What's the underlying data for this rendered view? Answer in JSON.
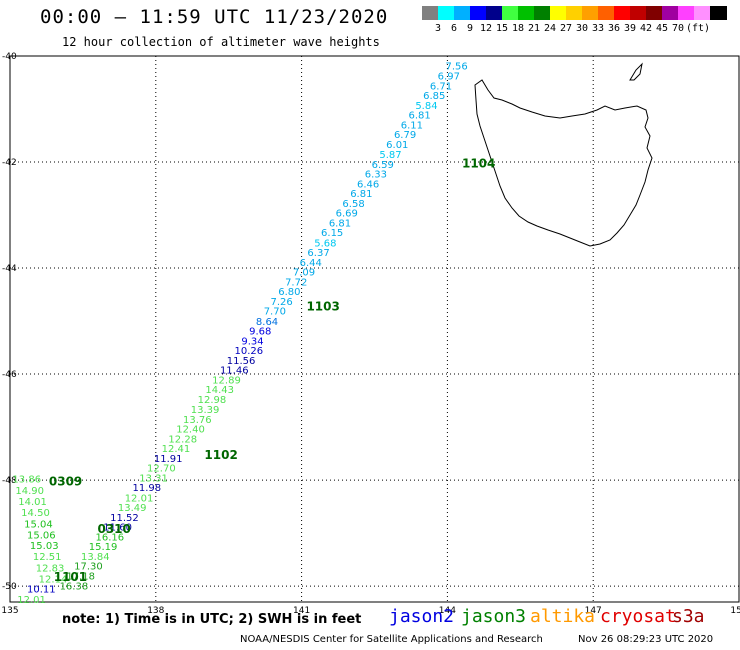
{
  "header": {
    "title": "00:00 – 11:59 UTC 11/23/2020",
    "subtitle": "12 hour collection of altimeter wave heights"
  },
  "legend": {
    "unit": "(ft)",
    "colors": [
      "#808080",
      "#00ffff",
      "#00b0ff",
      "#0000ff",
      "#00008b",
      "#40ff40",
      "#00c000",
      "#008000",
      "#ffff00",
      "#ffd000",
      "#ffa000",
      "#ff6000",
      "#ff0000",
      "#c00000",
      "#800000",
      "#a000a0",
      "#ff40ff",
      "#ff90ff",
      "#000000"
    ],
    "labels": [
      "3",
      "6",
      "9",
      "12",
      "15",
      "18",
      "21",
      "24",
      "27",
      "30",
      "33",
      "36",
      "39",
      "42",
      "45",
      "70"
    ]
  },
  "axes": {
    "lon_ticks": [
      "135",
      "138",
      "141",
      "144",
      "147",
      "150"
    ],
    "lat_ticks": [
      "-40",
      "-42",
      "-44",
      "-46",
      "-48",
      "-50"
    ]
  },
  "pass_labels": [
    {
      "text": "1104",
      "lon": 144.3,
      "lat": -42.1
    },
    {
      "text": "1103",
      "lon": 141.1,
      "lat": -44.8
    },
    {
      "text": "1102",
      "lon": 139.0,
      "lat": -47.6
    },
    {
      "text": "0309",
      "lon": 135.8,
      "lat": -48.1
    },
    {
      "text": "0310",
      "lon": 136.8,
      "lat": -49.0
    },
    {
      "text": "1101",
      "lon": 135.9,
      "lat": -49.9
    }
  ],
  "wave_values": [
    {
      "text": "7.56",
      "lon": 143.96,
      "lat": -40.25,
      "color": "#00a8e8"
    },
    {
      "text": "6.97",
      "lon": 143.8,
      "lat": -40.44,
      "color": "#00a8e8"
    },
    {
      "text": "6.71",
      "lon": 143.64,
      "lat": -40.63,
      "color": "#00a8e8"
    },
    {
      "text": "6.85",
      "lon": 143.5,
      "lat": -40.81,
      "color": "#00a8e8"
    },
    {
      "text": "5.84",
      "lon": 143.34,
      "lat": -41.0,
      "color": "#00c8f0"
    },
    {
      "text": "6.81",
      "lon": 143.2,
      "lat": -41.18,
      "color": "#00a8e8"
    },
    {
      "text": "6.11",
      "lon": 143.04,
      "lat": -41.37,
      "color": "#00a8e8"
    },
    {
      "text": "6.79",
      "lon": 142.9,
      "lat": -41.55,
      "color": "#00a8e8"
    },
    {
      "text": "6.01",
      "lon": 142.74,
      "lat": -41.74,
      "color": "#00a8e8"
    },
    {
      "text": "5.87",
      "lon": 142.6,
      "lat": -41.92,
      "color": "#00c8f0"
    },
    {
      "text": "6.59",
      "lon": 142.44,
      "lat": -42.11,
      "color": "#00a8e8"
    },
    {
      "text": "6.33",
      "lon": 142.3,
      "lat": -42.29,
      "color": "#00a8e8"
    },
    {
      "text": "6.46",
      "lon": 142.14,
      "lat": -42.48,
      "color": "#00a8e8"
    },
    {
      "text": "6.81",
      "lon": 142.0,
      "lat": -42.66,
      "color": "#00a8e8"
    },
    {
      "text": "6.58",
      "lon": 141.84,
      "lat": -42.85,
      "color": "#00a8e8"
    },
    {
      "text": "6.69",
      "lon": 141.7,
      "lat": -43.03,
      "color": "#00a8e8"
    },
    {
      "text": "6.81",
      "lon": 141.56,
      "lat": -43.22,
      "color": "#00a8e8"
    },
    {
      "text": "6.15",
      "lon": 141.4,
      "lat": -43.4,
      "color": "#00a8e8"
    },
    {
      "text": "5.68",
      "lon": 141.26,
      "lat": -43.59,
      "color": "#00c8f0"
    },
    {
      "text": "6.37",
      "lon": 141.12,
      "lat": -43.77,
      "color": "#00a8e8"
    },
    {
      "text": "6.44",
      "lon": 140.96,
      "lat": -43.96,
      "color": "#00a8e8"
    },
    {
      "text": "7.09",
      "lon": 140.82,
      "lat": -44.14,
      "color": "#00a8e8"
    },
    {
      "text": "7.72",
      "lon": 140.66,
      "lat": -44.33,
      "color": "#00a8e8"
    },
    {
      "text": "6.80",
      "lon": 140.52,
      "lat": -44.51,
      "color": "#00a8e8"
    },
    {
      "text": "7.26",
      "lon": 140.36,
      "lat": -44.7,
      "color": "#00a8e8"
    },
    {
      "text": "7.70",
      "lon": 140.22,
      "lat": -44.88,
      "color": "#00a8e8"
    },
    {
      "text": "8.64",
      "lon": 140.06,
      "lat": -45.07,
      "color": "#0070e0"
    },
    {
      "text": "9.68",
      "lon": 139.92,
      "lat": -45.25,
      "color": "#0000e0"
    },
    {
      "text": "9.34",
      "lon": 139.76,
      "lat": -45.44,
      "color": "#0000e0"
    },
    {
      "text": "10.26",
      "lon": 139.62,
      "lat": -45.62,
      "color": "#0000c0"
    },
    {
      "text": "11.56",
      "lon": 139.46,
      "lat": -45.81,
      "color": "#0000a0"
    },
    {
      "text": "11.46",
      "lon": 139.32,
      "lat": -45.99,
      "color": "#0000a0"
    },
    {
      "text": "12.89",
      "lon": 139.16,
      "lat": -46.18,
      "color": "#50e050"
    },
    {
      "text": "14.43",
      "lon": 139.02,
      "lat": -46.36,
      "color": "#50e050"
    },
    {
      "text": "12.98",
      "lon": 138.86,
      "lat": -46.55,
      "color": "#50e050"
    },
    {
      "text": "13.39",
      "lon": 138.72,
      "lat": -46.73,
      "color": "#50e050"
    },
    {
      "text": "13.76",
      "lon": 138.56,
      "lat": -46.92,
      "color": "#50e050"
    },
    {
      "text": "12.40",
      "lon": 138.42,
      "lat": -47.1,
      "color": "#50e050"
    },
    {
      "text": "12.28",
      "lon": 138.26,
      "lat": -47.29,
      "color": "#50e050"
    },
    {
      "text": "12.41",
      "lon": 138.12,
      "lat": -47.47,
      "color": "#50e050"
    },
    {
      "text": "11.91",
      "lon": 137.96,
      "lat": -47.66,
      "color": "#0000a0"
    },
    {
      "text": "12.70",
      "lon": 137.82,
      "lat": -47.84,
      "color": "#50e050"
    },
    {
      "text": "13.31",
      "lon": 137.66,
      "lat": -48.03,
      "color": "#50e050"
    },
    {
      "text": "11.98",
      "lon": 137.52,
      "lat": -48.21,
      "color": "#0000a0"
    },
    {
      "text": "12.01",
      "lon": 137.36,
      "lat": -48.4,
      "color": "#50e050"
    },
    {
      "text": "13.49",
      "lon": 137.22,
      "lat": -48.58,
      "color": "#50e050"
    },
    {
      "text": "11.52",
      "lon": 137.06,
      "lat": -48.77,
      "color": "#0000a0"
    },
    {
      "text": "11.60",
      "lon": 136.92,
      "lat": -48.95,
      "color": "#0000a0"
    },
    {
      "text": "16.16",
      "lon": 136.76,
      "lat": -49.14,
      "color": "#20c020"
    },
    {
      "text": "15.19",
      "lon": 136.62,
      "lat": -49.32,
      "color": "#20c020"
    },
    {
      "text": "13.84",
      "lon": 136.46,
      "lat": -49.51,
      "color": "#50e050"
    },
    {
      "text": "17.30",
      "lon": 136.32,
      "lat": -49.69,
      "color": "#20a020"
    },
    {
      "text": "17.18",
      "lon": 136.16,
      "lat": -49.88,
      "color": "#20a020"
    },
    {
      "text": "16.38",
      "lon": 136.02,
      "lat": -50.06,
      "color": "#20a020"
    },
    {
      "text": "13.86",
      "lon": 135.05,
      "lat": -48.05,
      "color": "#50e050"
    },
    {
      "text": "14.90",
      "lon": 135.11,
      "lat": -48.26,
      "color": "#50e050"
    },
    {
      "text": "14.01",
      "lon": 135.17,
      "lat": -48.47,
      "color": "#50e050"
    },
    {
      "text": "14.50",
      "lon": 135.23,
      "lat": -48.68,
      "color": "#50e050"
    },
    {
      "text": "15.04",
      "lon": 135.29,
      "lat": -48.89,
      "color": "#20c020"
    },
    {
      "text": "15.06",
      "lon": 135.35,
      "lat": -49.1,
      "color": "#20c020"
    },
    {
      "text": "15.03",
      "lon": 135.41,
      "lat": -49.3,
      "color": "#20c020"
    },
    {
      "text": "12.51",
      "lon": 135.47,
      "lat": -49.51,
      "color": "#50e050"
    },
    {
      "text": "12.83",
      "lon": 135.53,
      "lat": -49.72,
      "color": "#50e050"
    },
    {
      "text": "12.14",
      "lon": 135.59,
      "lat": -49.93,
      "color": "#50e050"
    },
    {
      "text": "10.11",
      "lon": 135.35,
      "lat": -50.12,
      "color": "#0000c0"
    },
    {
      "text": "12.01",
      "lon": 135.15,
      "lat": -50.32,
      "color": "#50e050"
    }
  ],
  "footer": {
    "note": "note: 1) Time is in UTC; 2) SWH is in feet",
    "satellites": [
      {
        "name": "jason2",
        "color": "#0000e0"
      },
      {
        "name": "jason3",
        "color": "#008000"
      },
      {
        "name": "altika",
        "color": "#ff9900"
      },
      {
        "name": "cryosat",
        "color": "#e00000"
      },
      {
        "name": "s3a",
        "color": "#a00000"
      }
    ],
    "credit": "NOAA/NESDIS Center for Satellite Applications and Research",
    "timestamp": "Nov 26 08:29:23 UTC 2020"
  }
}
